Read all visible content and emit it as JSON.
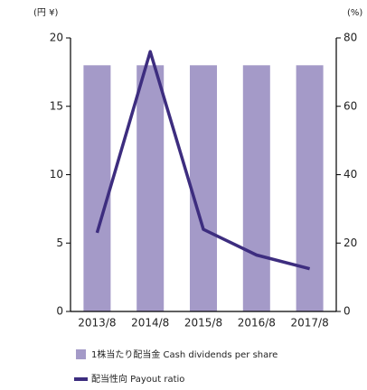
{
  "chart_data": {
    "type": "bar",
    "y_unit": "(円 ¥)",
    "y2_unit": "(%)",
    "categories": [
      "2013/8",
      "2014/8",
      "2015/8",
      "2016/8",
      "2017/8"
    ],
    "series": [
      {
        "name": "1株当たり配当金 Cash dividends per share",
        "type": "bar",
        "color": "#a49ac8",
        "axis": "y",
        "values": [
          18,
          18,
          18,
          18,
          18
        ]
      },
      {
        "name": "配当性向 Payout ratio",
        "type": "line",
        "color": "#3d2d7f",
        "axis": "y2",
        "values": [
          23,
          76,
          24,
          16.5,
          12.5
        ]
      }
    ],
    "ylim": [
      0,
      20
    ],
    "yticks": [
      0,
      5,
      10,
      15,
      20
    ],
    "y2lim": [
      0,
      80
    ],
    "y2ticks": [
      0,
      20,
      40,
      60,
      80
    ]
  }
}
